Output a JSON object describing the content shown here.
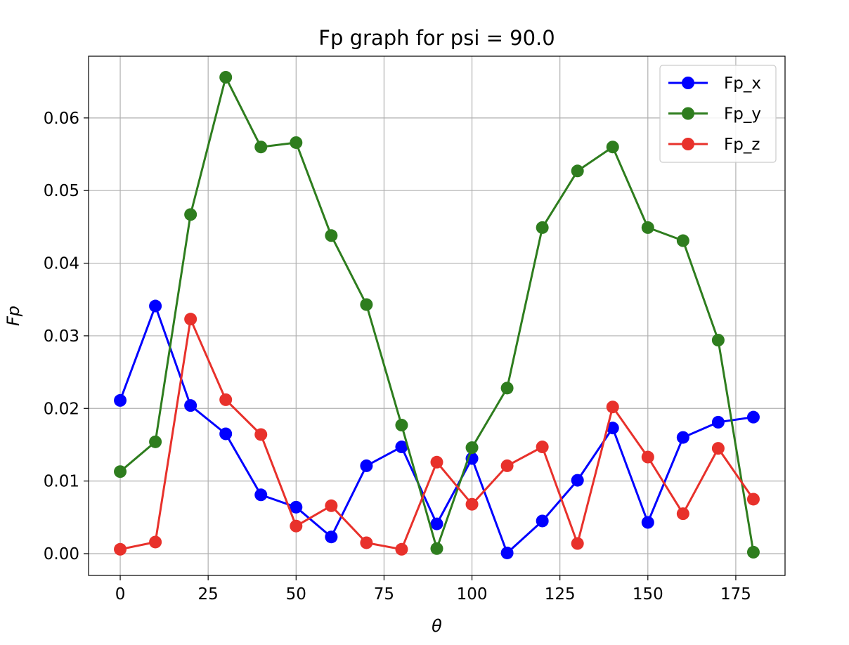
{
  "chart_data": {
    "type": "line",
    "title": "Fp graph for psi = 90.0",
    "xlabel": "θ",
    "ylabel": "Fp",
    "xlim": [
      -9,
      189
    ],
    "ylim": [
      -0.003,
      0.0685
    ],
    "grid": true,
    "legend_position": "upper right",
    "x_ticks": [
      0,
      25,
      50,
      75,
      100,
      125,
      150,
      175
    ],
    "x_tick_labels": [
      "0",
      "25",
      "50",
      "75",
      "100",
      "125",
      "150",
      "175"
    ],
    "y_ticks": [
      0.0,
      0.01,
      0.02,
      0.03,
      0.04,
      0.05,
      0.06
    ],
    "y_tick_labels": [
      "0.00",
      "0.01",
      "0.02",
      "0.03",
      "0.04",
      "0.05",
      "0.06"
    ],
    "x": [
      0,
      10,
      20,
      30,
      40,
      50,
      60,
      70,
      80,
      90,
      100,
      110,
      120,
      130,
      140,
      150,
      160,
      170,
      180
    ],
    "series": [
      {
        "name": "Fp_x",
        "color": "#0000ff",
        "values": [
          0.0211,
          0.0341,
          0.0204,
          0.0165,
          0.0081,
          0.0064,
          0.0023,
          0.0121,
          0.0147,
          0.0041,
          0.0131,
          0.0001,
          0.0045,
          0.0101,
          0.0173,
          0.0043,
          0.016,
          0.0181,
          0.0188
        ]
      },
      {
        "name": "Fp_y",
        "color": "#2e7d1e",
        "values": [
          0.0113,
          0.0154,
          0.0467,
          0.0656,
          0.056,
          0.0566,
          0.0438,
          0.0343,
          0.0177,
          0.0007,
          0.0146,
          0.0228,
          0.0449,
          0.0527,
          0.056,
          0.0449,
          0.0431,
          0.0294,
          0.0002
        ]
      },
      {
        "name": "Fp_z",
        "color": "#e8312b",
        "values": [
          0.0006,
          0.0016,
          0.0323,
          0.0212,
          0.0164,
          0.0038,
          0.0066,
          0.0015,
          0.0006,
          0.0126,
          0.0068,
          0.0121,
          0.0147,
          0.0014,
          0.0202,
          0.0133,
          0.0055,
          0.0145,
          0.0075
        ]
      }
    ]
  }
}
